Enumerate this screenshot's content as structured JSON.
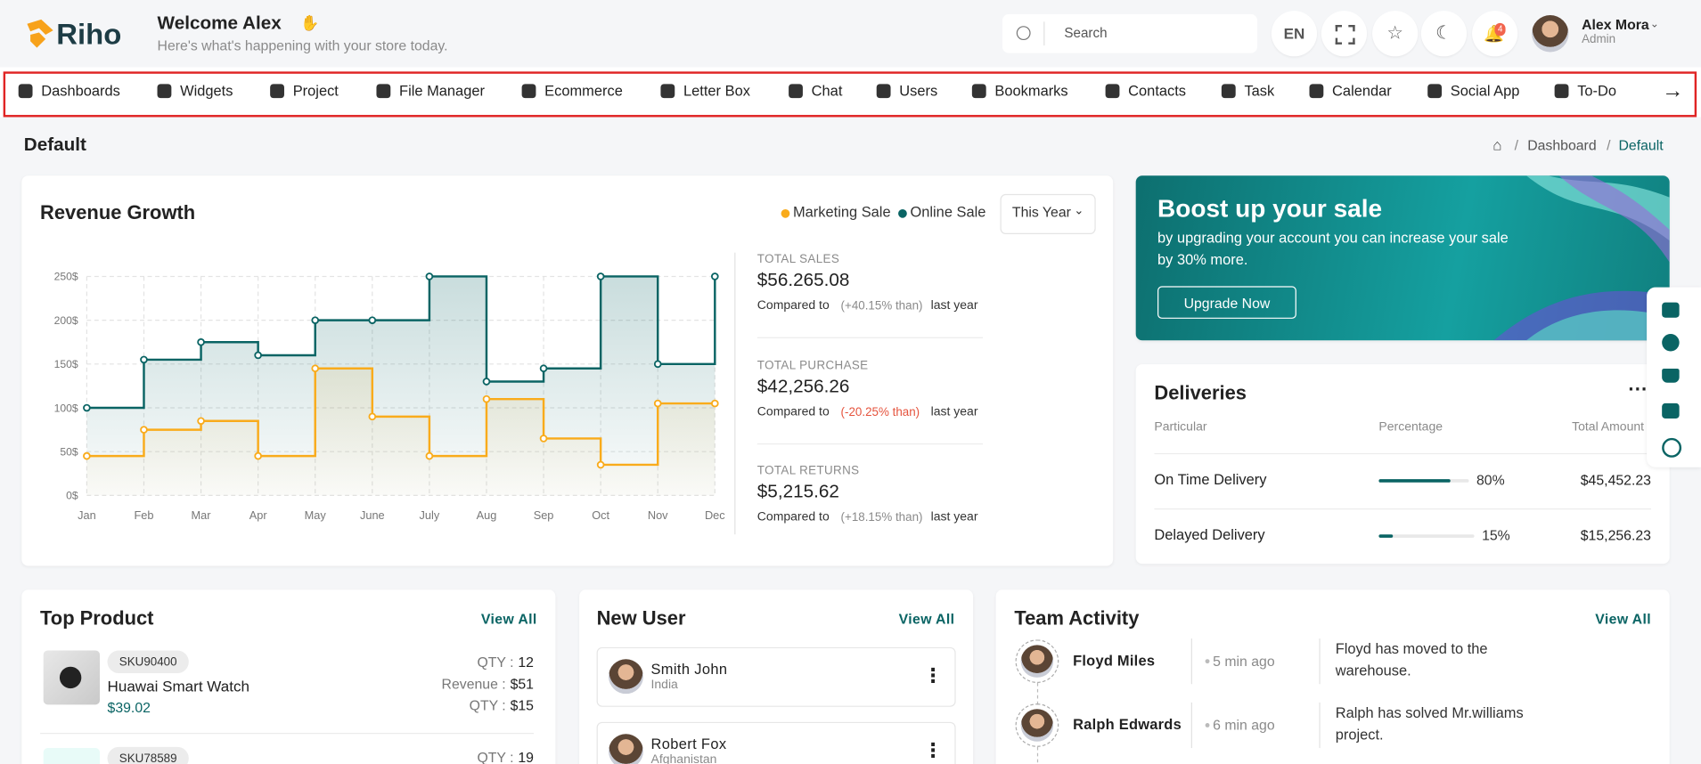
{
  "header": {
    "brand": "Riho",
    "welcome": "Welcome Alex",
    "subtitle": "Here's what's happening with your store today.",
    "search_placeholder": "Search",
    "language": "EN",
    "notification_count": "4",
    "user_name": "Alex Mora",
    "user_role": "Admin"
  },
  "nav": {
    "items": [
      "Dashboards",
      "Widgets",
      "Project",
      "File Manager",
      "Ecommerce",
      "Letter Box",
      "Chat",
      "Users",
      "Bookmarks",
      "Contacts",
      "Task",
      "Calendar",
      "Social App",
      "To-Do"
    ]
  },
  "page": {
    "title": "Default",
    "breadcrumb": [
      "Dashboard",
      "Default"
    ]
  },
  "revenue": {
    "title": "Revenue Growth",
    "period": "This Year",
    "chart": {
      "type": "line",
      "step": true,
      "categories": [
        "Jan",
        "Feb",
        "Mar",
        "Apr",
        "May",
        "June",
        "July",
        "Aug",
        "Sep",
        "Oct",
        "Nov",
        "Dec"
      ],
      "series": [
        {
          "name": "Marketing Sale",
          "color": "#f9ab1b",
          "values": [
            45,
            75,
            85,
            45,
            145,
            90,
            45,
            110,
            65,
            35,
            105,
            105
          ]
        },
        {
          "name": "Online Sale",
          "color": "#0a6464",
          "values": [
            100,
            155,
            175,
            160,
            200,
            200,
            250,
            130,
            145,
            250,
            150,
            250
          ]
        }
      ],
      "ylim": [
        0,
        250
      ],
      "yticks": [
        {
          "value": 0,
          "label": "0$"
        },
        {
          "value": 50,
          "label": "50$"
        },
        {
          "value": 100,
          "label": "100$"
        },
        {
          "value": 150,
          "label": "150$"
        },
        {
          "value": 200,
          "label": "200$"
        },
        {
          "value": 250,
          "label": "250$"
        }
      ],
      "grid": true
    },
    "stats": [
      {
        "label": "TOTAL SALES",
        "value": "$56.265.08",
        "compare": "Compared to",
        "change": "(+40.15% than)",
        "suffix": "last year"
      },
      {
        "label": "TOTAL PURCHASE",
        "value": "$42,256.26",
        "compare": "Compared to",
        "change": "(-20.25% than)",
        "suffix": "last year"
      },
      {
        "label": "TOTAL RETURNS",
        "value": "$5,215.62",
        "compare": "Compared to",
        "change": "(+18.15% than)",
        "suffix": "last year"
      }
    ]
  },
  "promo": {
    "title": "Boost up your sale",
    "text": "by upgrading your account you can increase your sale by 30% more.",
    "button": "Upgrade Now"
  },
  "deliveries": {
    "title": "Deliveries",
    "columns": [
      "Particular",
      "Percentage",
      "Total Amount"
    ],
    "rows": [
      {
        "name": "On Time Delivery",
        "percentage": 80,
        "percentage_label": "80%",
        "amount": "$45,452.23"
      },
      {
        "name": "Delayed Delivery",
        "percentage": 15,
        "percentage_label": "15%",
        "amount": "$15,256.23"
      }
    ]
  },
  "top_product": {
    "title": "Top Product",
    "view_all": "View All",
    "items": [
      {
        "sku": "SKU90400",
        "name": "Huawai Smart Watch",
        "price": "$39.02",
        "stats": [
          {
            "label": "QTY :",
            "value": "12"
          },
          {
            "label": "Revenue :",
            "value": "$51"
          },
          {
            "label": "QTY :",
            "value": "$15"
          }
        ]
      },
      {
        "sku": "SKU78589",
        "stats": [
          {
            "label": "QTY :",
            "value": "19"
          }
        ]
      }
    ]
  },
  "new_user": {
    "title": "New User",
    "view_all": "View All",
    "users": [
      {
        "name": "Smith John",
        "country": "India"
      },
      {
        "name": "Robert Fox",
        "country": "Afghanistan"
      }
    ]
  },
  "team_activity": {
    "title": "Team Activity",
    "view_all": "View All",
    "items": [
      {
        "name": "Floyd Miles",
        "time": "5 min ago",
        "text": "Floyd has moved to the warehouse."
      },
      {
        "name": "Ralph Edwards",
        "time": "6 min ago",
        "text": "Ralph has solved Mr.williams project."
      }
    ]
  }
}
